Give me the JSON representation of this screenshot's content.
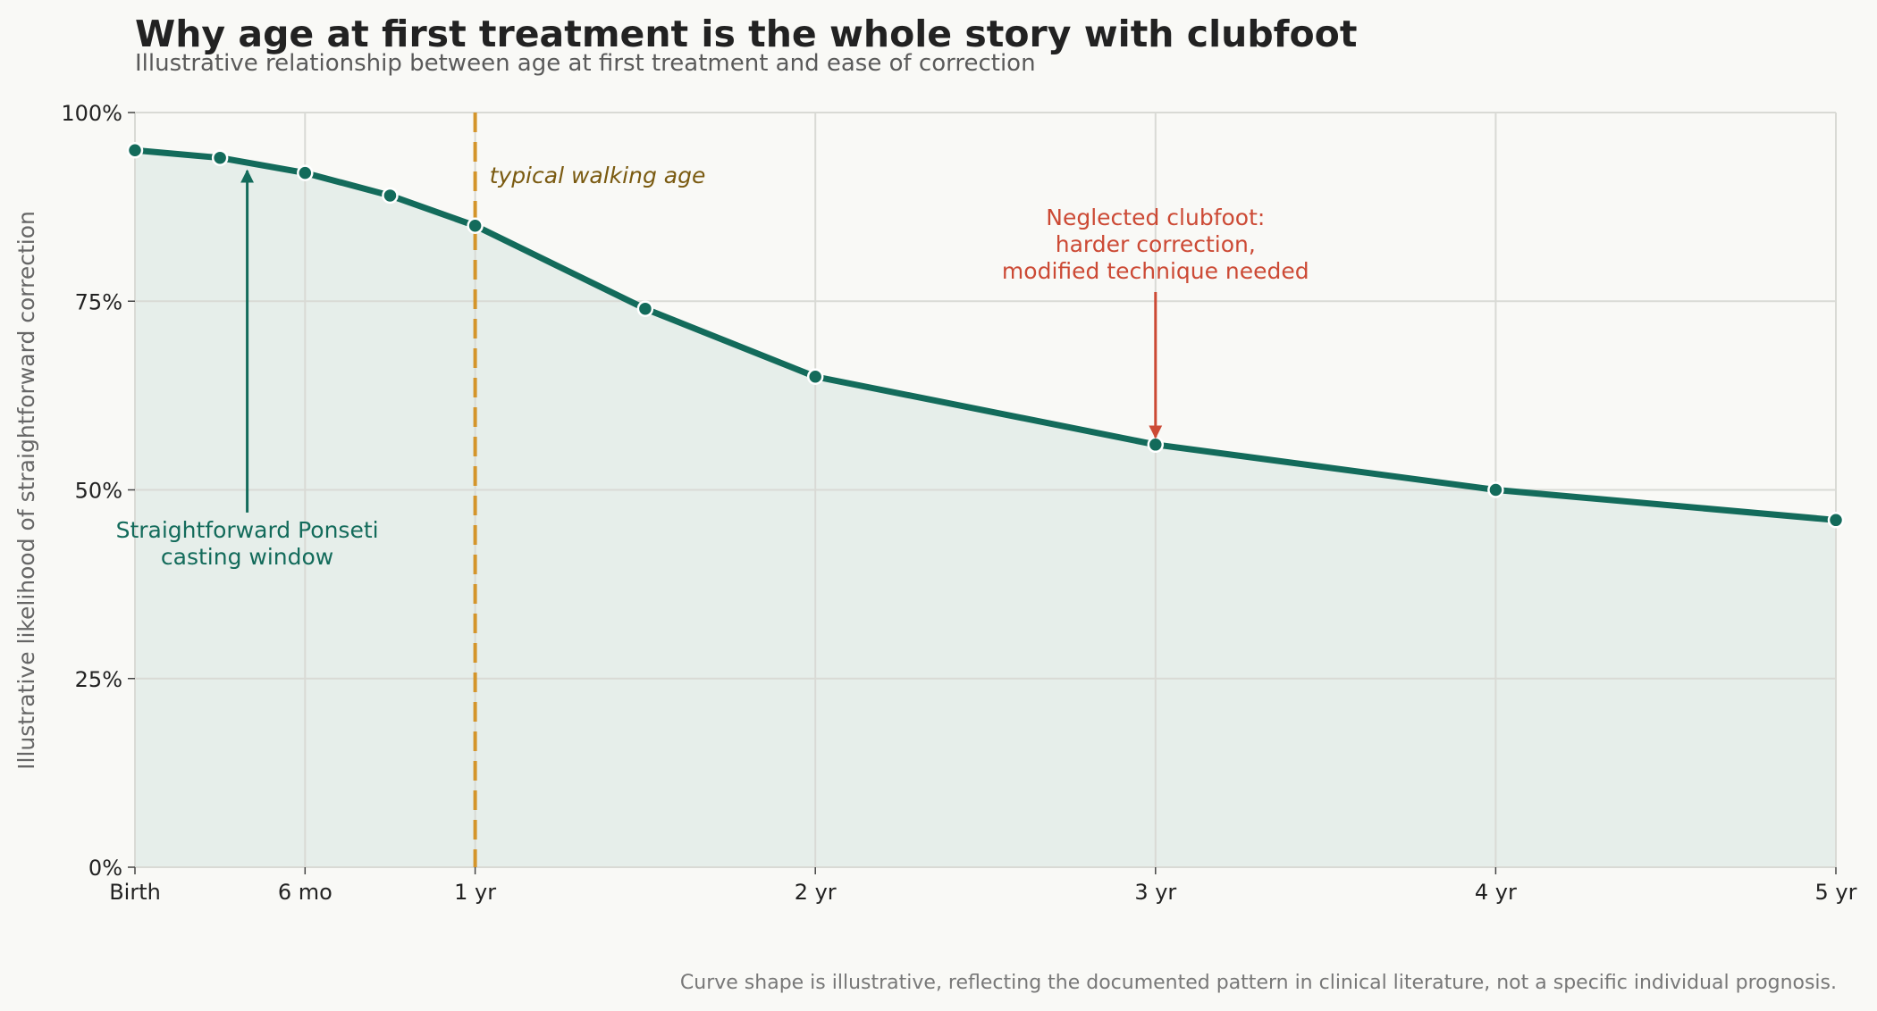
{
  "chart_data": {
    "type": "area",
    "title": "Why age at first treatment is the whole story with clubfoot",
    "subtitle": "Illustrative relationship between age at first treatment and ease of correction",
    "ylabel": "Illustrative likelihood of straightforward correction",
    "xlabel": "",
    "x_unit": "years",
    "xlim": [
      0,
      5
    ],
    "ylim": [
      0,
      100
    ],
    "grid": true,
    "x_ticks": [
      {
        "value": 0,
        "label": "Birth"
      },
      {
        "value": 0.5,
        "label": "6 mo"
      },
      {
        "value": 1,
        "label": "1 yr"
      },
      {
        "value": 2,
        "label": "2 yr"
      },
      {
        "value": 3,
        "label": "3 yr"
      },
      {
        "value": 4,
        "label": "4 yr"
      },
      {
        "value": 5,
        "label": "5 yr"
      }
    ],
    "y_ticks": [
      {
        "value": 0,
        "label": "0%"
      },
      {
        "value": 25,
        "label": "25%"
      },
      {
        "value": 50,
        "label": "50%"
      },
      {
        "value": 75,
        "label": "75%"
      },
      {
        "value": 100,
        "label": "100%"
      }
    ],
    "series": [
      {
        "x": [
          0,
          0.25,
          0.5,
          0.75,
          1,
          1.5,
          2,
          3,
          4,
          5
        ],
        "y": [
          95,
          94,
          92,
          89,
          85,
          74,
          65,
          56,
          50,
          46
        ]
      }
    ],
    "reference_line": {
      "x": 1,
      "label": "typical walking age",
      "style": "dashed"
    },
    "annotations": [
      {
        "lines": [
          "Straightforward Ponseti",
          "casting window"
        ],
        "arrow_to": {
          "x": 0.33,
          "y": 93
        },
        "text_at": {
          "x": 0.33,
          "y": 43
        }
      },
      {
        "lines": [
          "Neglected clubfoot:",
          "harder correction,",
          "modified technique needed"
        ],
        "arrow_to": {
          "x": 3,
          "y": 56
        },
        "text_at": {
          "x": 3,
          "y": 85
        }
      }
    ],
    "footnote": "Curve shape is illustrative, reflecting the documented pattern in clinical literature, not a specific individual prognosis."
  },
  "colors": {
    "background": "#f9f9f6",
    "line": "#136b5b",
    "area_fill": "#e6eeea",
    "grid": "#d9dad5",
    "reference_line": "#d4952b",
    "reference_label": "#7a5a10",
    "annotation_green": "#136b5b",
    "annotation_red": "#cc4a35"
  }
}
